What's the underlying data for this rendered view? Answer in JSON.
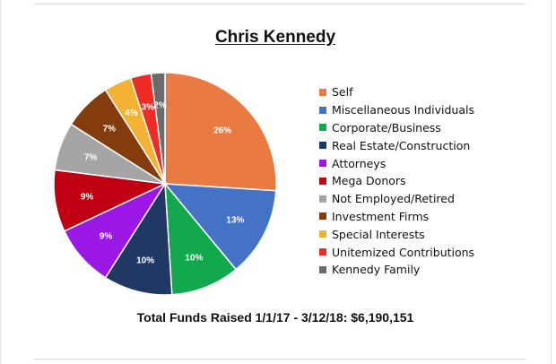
{
  "chart_data": {
    "type": "pie",
    "title": "Chris Kennedy",
    "footer": "Total Funds Raised 1/1/17 - 3/12/18: $6,190,151",
    "legend_position": "right",
    "slices": [
      {
        "name": "Self",
        "value": 26,
        "label": "26%",
        "color": "#e97b42"
      },
      {
        "name": "Miscellaneous Individuals",
        "value": 13,
        "label": "13%",
        "color": "#4472c4"
      },
      {
        "name": "Corporate/Business",
        "value": 10,
        "label": "10%",
        "color": "#11a84e"
      },
      {
        "name": "Real Estate/Construction",
        "value": 10,
        "label": "10%",
        "color": "#203864"
      },
      {
        "name": "Attorneys",
        "value": 9,
        "label": "9%",
        "color": "#9a17e6"
      },
      {
        "name": "Mega Donors",
        "value": 9,
        "label": "9%",
        "color": "#c00012"
      },
      {
        "name": "Not Employed/Retired",
        "value": 7,
        "label": "7%",
        "color": "#a5a5a5"
      },
      {
        "name": "Investment Firms",
        "value": 7,
        "label": "7%",
        "color": "#843c0c"
      },
      {
        "name": "Special Interests",
        "value": 4,
        "label": "4%",
        "color": "#f2b233"
      },
      {
        "name": "Unitemized Contributions",
        "value": 3,
        "label": "3%",
        "color": "#ee2b26"
      },
      {
        "name": "Kennedy Family",
        "value": 2,
        "label": "2%",
        "color": "#6b6b6b"
      }
    ]
  }
}
